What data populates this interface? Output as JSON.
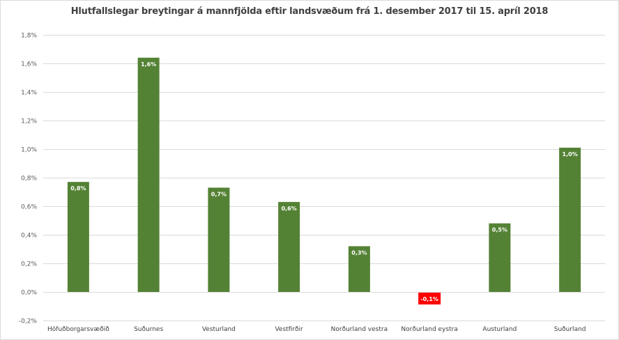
{
  "chart_data": {
    "type": "bar",
    "title": "Hlutfallslegar breytingar á mannfjölda eftir landsvæðum frá 1. desember 2017 til 15. apríl 2018",
    "xlabel": "",
    "ylabel": "",
    "categories": [
      "Höfuðborgarsvæðið",
      "Suðurnes",
      "Vesturland",
      "Vestfirðir",
      "Norðurland vestra",
      "Norðurland eystra",
      "Austurland",
      "Suðurland"
    ],
    "values": [
      0.0077,
      0.0164,
      0.0073,
      0.0063,
      0.0032,
      -0.0008,
      0.0048,
      0.0101
    ],
    "data_labels": [
      "0,8%",
      "1,6%",
      "0,7%",
      "0,6%",
      "0,3%",
      "-0,1%",
      "0,5%",
      "1,0%"
    ],
    "y_ticks": [
      -0.002,
      0,
      0.002,
      0.004,
      0.006,
      0.008,
      0.01,
      0.012,
      0.014,
      0.016,
      0.018
    ],
    "y_tick_labels": [
      "-0,2%",
      "0,0%",
      "0,2%",
      "0,4%",
      "0,6%",
      "0,8%",
      "1,0%",
      "1,2%",
      "1,4%",
      "1,6%",
      "1,8%"
    ],
    "ylim": [
      -0.002,
      0.018
    ],
    "grid": true,
    "legend": "none",
    "colors": {
      "positive": "#548235",
      "negative": "#ff0000",
      "grid": "#d9d9d9"
    }
  }
}
